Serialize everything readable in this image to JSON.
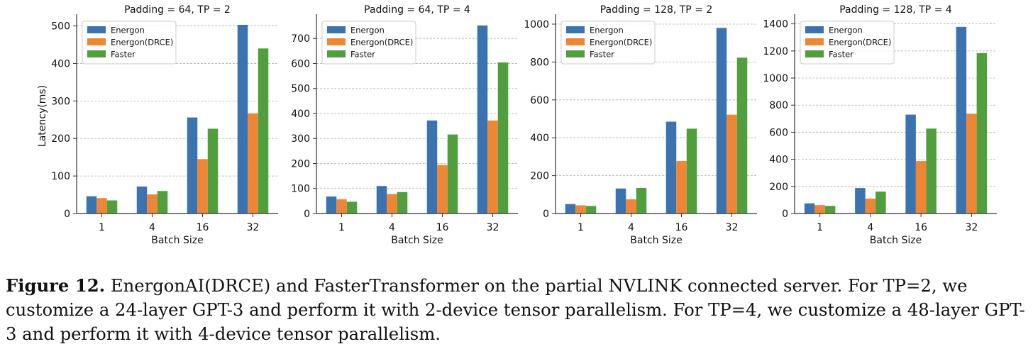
{
  "colors": {
    "energon": "#3a73b0",
    "energon_drce": "#ef8636",
    "faster": "#519e3e",
    "grid": "#b0b0b0",
    "axis": "#333333"
  },
  "chart_data": [
    {
      "type": "bar",
      "title": "Padding = 64, TP = 2",
      "xlabel": "Batch Size",
      "ylabel": "Latency(ms)",
      "categories": [
        "1",
        "4",
        "16",
        "32"
      ],
      "ylim": [
        0,
        520
      ],
      "yticks": [
        0,
        100,
        200,
        300,
        400,
        500
      ],
      "grid": "horizontal dashed",
      "legend": "top-left",
      "series": [
        {
          "name": "Energon",
          "values": [
            46,
            72,
            256,
            503
          ]
        },
        {
          "name": "Energon(DRCE)",
          "values": [
            41,
            51,
            145,
            267
          ]
        },
        {
          "name": "Faster",
          "values": [
            35,
            60,
            226,
            440
          ]
        }
      ]
    },
    {
      "type": "bar",
      "title": "Padding = 64, TP = 4",
      "xlabel": "Batch Size",
      "ylabel": "",
      "categories": [
        "1",
        "4",
        "16",
        "32"
      ],
      "ylim": [
        0,
        780
      ],
      "yticks": [
        0,
        100,
        200,
        300,
        400,
        500,
        600,
        700
      ],
      "grid": "horizontal dashed",
      "legend": "top-left",
      "series": [
        {
          "name": "Energon",
          "values": [
            68,
            110,
            372,
            752
          ]
        },
        {
          "name": "Energon(DRCE)",
          "values": [
            57,
            78,
            194,
            372
          ]
        },
        {
          "name": "Faster",
          "values": [
            47,
            86,
            316,
            604
          ]
        }
      ]
    },
    {
      "type": "bar",
      "title": "Padding = 128, TP = 2",
      "xlabel": "Batch Size",
      "ylabel": "",
      "categories": [
        "1",
        "4",
        "16",
        "32"
      ],
      "ylim": [
        0,
        1030
      ],
      "yticks": [
        0,
        200,
        400,
        600,
        800,
        1000
      ],
      "grid": "horizontal dashed",
      "legend": "top-left",
      "series": [
        {
          "name": "Energon",
          "values": [
            50,
            132,
            485,
            980
          ]
        },
        {
          "name": "Energon(DRCE)",
          "values": [
            43,
            75,
            277,
            522
          ]
        },
        {
          "name": "Faster",
          "values": [
            40,
            135,
            448,
            823
          ]
        }
      ]
    },
    {
      "type": "bar",
      "title": "Padding = 128, TP = 4",
      "xlabel": "Batch Size",
      "ylabel": "",
      "categories": [
        "1",
        "4",
        "16",
        "32"
      ],
      "ylim": [
        0,
        1440
      ],
      "yticks": [
        0,
        200,
        400,
        600,
        800,
        1000,
        1200,
        1400
      ],
      "grid": "horizontal dashed",
      "legend": "top-left",
      "series": [
        {
          "name": "Energon",
          "values": [
            75,
            188,
            730,
            1378
          ]
        },
        {
          "name": "Energon(DRCE)",
          "values": [
            62,
            110,
            387,
            737
          ]
        },
        {
          "name": "Faster",
          "values": [
            56,
            162,
            627,
            1184
          ]
        }
      ]
    }
  ],
  "caption": {
    "label": "Figure 12.",
    "text": " EnergonAI(DRCE) and FasterTransformer on the partial NVLINK connected server. For TP=2, we customize a 24-layer GPT-3 and perform it with 2-device tensor parallelism. For TP=4, we customize a 48-layer GPT-3 and perform it with 4-device tensor parallelism."
  }
}
